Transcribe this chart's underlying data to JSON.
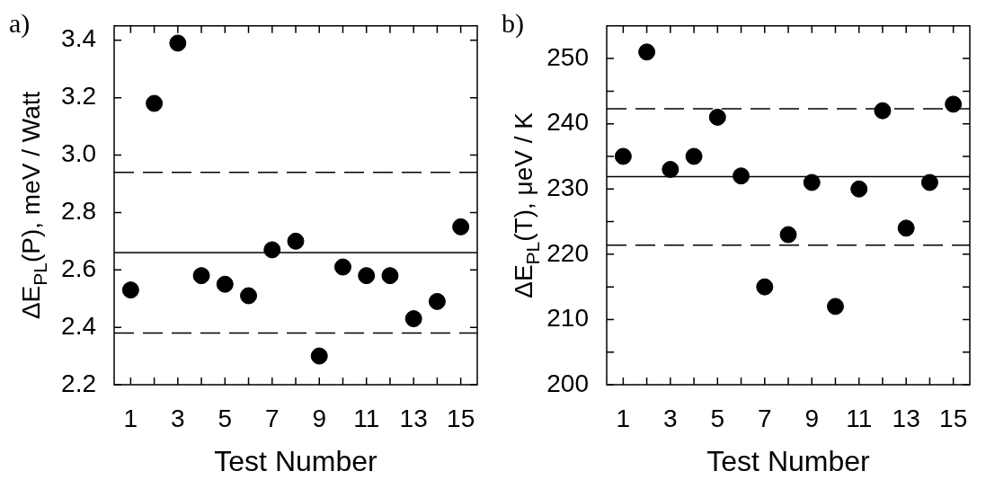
{
  "chart_data": [
    {
      "type": "scatter",
      "title": "a)",
      "xlabel": "Test Number",
      "ylabel": "ΔE$_{PL}$(P), meV / Watt",
      "x": [
        1,
        2,
        3,
        4,
        5,
        6,
        7,
        8,
        9,
        10,
        11,
        12,
        13,
        14,
        15
      ],
      "series": [
        {
          "color": "#000000",
          "values": [
            2.53,
            3.18,
            3.39,
            2.58,
            2.55,
            2.51,
            2.67,
            2.7,
            2.3,
            2.61,
            2.58,
            2.58,
            2.43,
            2.49,
            2.75
          ]
        }
      ],
      "xlim": [
        0.3,
        15.7
      ],
      "xticks": [
        1,
        {
          "value": 2,
          "label": null
        },
        3,
        {
          "value": 4,
          "label": null
        },
        5,
        {
          "value": 6,
          "label": null
        },
        7,
        {
          "value": 8,
          "label": null
        },
        9,
        {
          "value": 10,
          "label": null
        },
        11,
        {
          "value": 12,
          "label": null
        },
        13,
        {
          "value": 14,
          "label": null
        },
        15
      ],
      "ylim": [
        2.2,
        3.45
      ],
      "yticks": [
        2.2,
        2.4,
        2.6,
        2.8,
        {
          "value": 3.0,
          "label": "3.0"
        },
        3.2,
        3.4
      ],
      "ref_lines": [
        {
          "axis": "y",
          "value": 2.94,
          "line_style": "dashed",
          "color": "#000000"
        },
        {
          "axis": "y",
          "value": 2.66,
          "line_style": "solid",
          "color": "#000000"
        },
        {
          "axis": "y",
          "value": 2.38,
          "line_style": "dashed",
          "color": "#000000"
        }
      ],
      "marker": "circle",
      "legend": false
    },
    {
      "type": "scatter",
      "title": "b)",
      "xlabel": "Test Number",
      "ylabel": "ΔE$_{PL}$(T), μeV / K",
      "x": [
        1,
        2,
        3,
        4,
        5,
        6,
        7,
        8,
        9,
        10,
        11,
        12,
        13,
        14,
        15
      ],
      "series": [
        {
          "color": "#000000",
          "values": [
            235,
            251,
            233,
            235,
            241,
            232,
            215,
            223,
            231,
            212,
            230,
            242,
            224,
            231,
            243
          ]
        }
      ],
      "xlim": [
        0.3,
        15.7
      ],
      "xticks": [
        1,
        {
          "value": 2,
          "label": null
        },
        3,
        {
          "value": 4,
          "label": null
        },
        5,
        {
          "value": 6,
          "label": null
        },
        7,
        {
          "value": 8,
          "label": null
        },
        9,
        {
          "value": 10,
          "label": null
        },
        11,
        {
          "value": 12,
          "label": null
        },
        13,
        {
          "value": 14,
          "label": null
        },
        15
      ],
      "ylim": [
        200,
        255
      ],
      "yticks": [
        200,
        {
          "value": 205,
          "label": null
        },
        210,
        {
          "value": 215,
          "label": null
        },
        220,
        {
          "value": 225,
          "label": null
        },
        230,
        {
          "value": 235,
          "label": null
        },
        240,
        {
          "value": 245,
          "label": null
        },
        250
      ],
      "ref_lines": [
        {
          "axis": "y",
          "value": 242.3,
          "line_style": "dashed",
          "color": "#000000"
        },
        {
          "axis": "y",
          "value": 231.9,
          "line_style": "solid",
          "color": "#000000"
        },
        {
          "axis": "y",
          "value": 221.4,
          "line_style": "dashed",
          "color": "#000000"
        }
      ],
      "marker": "circle",
      "legend": false
    }
  ]
}
